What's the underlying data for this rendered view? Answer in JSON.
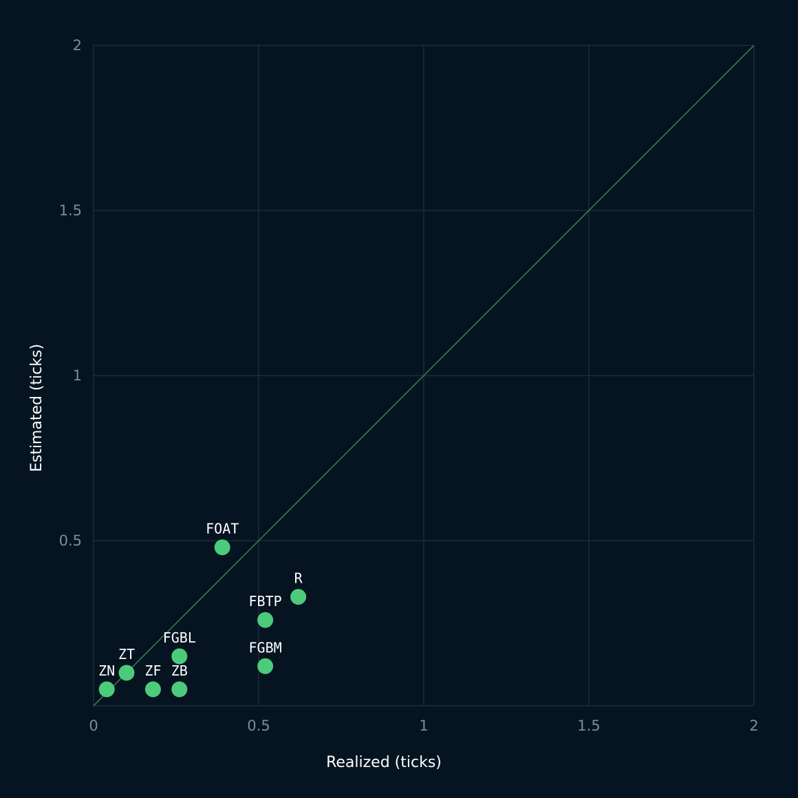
{
  "chart_data": {
    "type": "scatter",
    "title": "",
    "xlabel": "Realized (ticks)",
    "ylabel": "Estimated (ticks)",
    "xlim": [
      0,
      2
    ],
    "ylim": [
      0,
      2
    ],
    "grid": true,
    "x_ticks": [
      "0",
      "0.5",
      "1",
      "1.5",
      "2"
    ],
    "y_ticks": [
      "0.5",
      "1",
      "1.5",
      "2"
    ],
    "reference_line": "y = x",
    "colors": {
      "background": "#061421",
      "grid": "#1e2d3a",
      "point": "#4ccc7a",
      "diagonal": "#2d8a56"
    },
    "points": [
      {
        "label": "ZN",
        "x": 0.04,
        "y": 0.05
      },
      {
        "label": "ZT",
        "x": 0.1,
        "y": 0.1
      },
      {
        "label": "ZF",
        "x": 0.18,
        "y": 0.05
      },
      {
        "label": "ZB",
        "x": 0.26,
        "y": 0.05
      },
      {
        "label": "FGBL",
        "x": 0.26,
        "y": 0.15
      },
      {
        "label": "FGBM",
        "x": 0.52,
        "y": 0.12
      },
      {
        "label": "FBTP",
        "x": 0.52,
        "y": 0.26
      },
      {
        "label": "R",
        "x": 0.62,
        "y": 0.33
      },
      {
        "label": "FOAT",
        "x": 0.39,
        "y": 0.48
      }
    ]
  }
}
